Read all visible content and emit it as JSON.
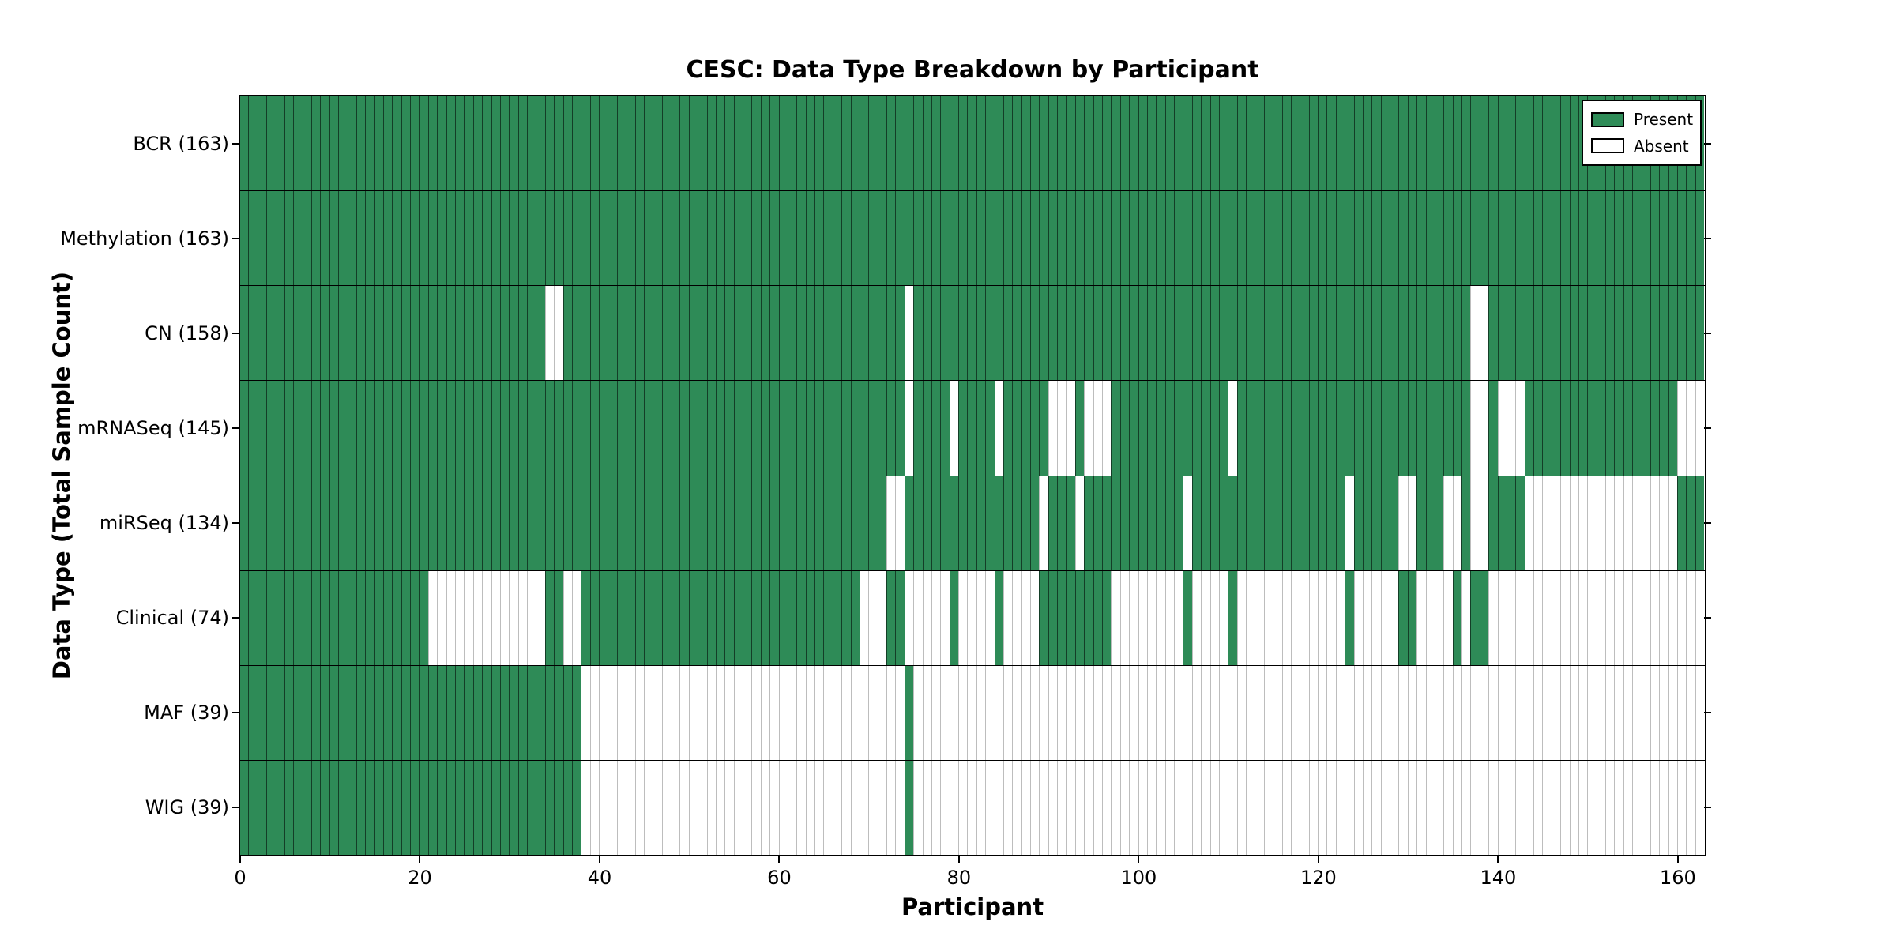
{
  "chart_data": {
    "type": "heatmap",
    "title": "CESC: Data Type Breakdown by Participant",
    "xlabel": "Participant",
    "ylabel": "Data Type (Total Sample Count)",
    "n_participants": 163,
    "xlim": [
      0,
      163
    ],
    "x_ticks": [
      0,
      20,
      40,
      60,
      80,
      100,
      120,
      140,
      160
    ],
    "grid": "per-participant cell edges; black horizontal separators between rows",
    "legend": {
      "position": "upper right",
      "entries": [
        {
          "label": "Present",
          "color": "#2e8b57"
        },
        {
          "label": "Absent",
          "color": "#ffffff"
        }
      ]
    },
    "colors": {
      "present": "#2e8b57",
      "absent": "#ffffff",
      "cell_edge": "#000000",
      "row_separator": "#000000"
    },
    "rows": [
      {
        "label": "BCR (163)",
        "name": "BCR",
        "total_samples": 163,
        "absent_ranges": []
      },
      {
        "label": "Methylation (163)",
        "name": "Methylation",
        "total_samples": 163,
        "absent_ranges": []
      },
      {
        "label": "CN (158)",
        "name": "CN",
        "total_samples": 158,
        "absent_ranges": [
          [
            34,
            35
          ],
          [
            74,
            74
          ],
          [
            137,
            138
          ]
        ]
      },
      {
        "label": "mRNASeq (145)",
        "name": "mRNASeq",
        "total_samples": 145,
        "absent_ranges": [
          [
            74,
            74
          ],
          [
            79,
            79
          ],
          [
            84,
            84
          ],
          [
            90,
            92
          ],
          [
            94,
            96
          ],
          [
            110,
            110
          ],
          [
            137,
            138
          ],
          [
            140,
            142
          ],
          [
            160,
            162
          ]
        ]
      },
      {
        "label": "miRSeq (134)",
        "name": "miRSeq",
        "total_samples": 134,
        "absent_ranges": [
          [
            72,
            73
          ],
          [
            89,
            89
          ],
          [
            93,
            93
          ],
          [
            105,
            105
          ],
          [
            123,
            123
          ],
          [
            129,
            130
          ],
          [
            134,
            135
          ],
          [
            137,
            138
          ],
          [
            143,
            159
          ]
        ]
      },
      {
        "label": "Clinical (74)",
        "name": "Clinical",
        "total_samples": 74,
        "absent_ranges": [
          [
            21,
            33
          ],
          [
            36,
            37
          ],
          [
            69,
            71
          ],
          [
            74,
            78
          ],
          [
            80,
            83
          ],
          [
            85,
            88
          ],
          [
            97,
            104
          ],
          [
            106,
            109
          ],
          [
            111,
            122
          ],
          [
            124,
            128
          ],
          [
            131,
            134
          ],
          [
            136,
            136
          ],
          [
            139,
            162
          ]
        ]
      },
      {
        "label": "MAF (39)",
        "name": "MAF",
        "total_samples": 39,
        "absent_ranges": [
          [
            38,
            73
          ],
          [
            75,
            162
          ]
        ]
      },
      {
        "label": "WIG (39)",
        "name": "WIG",
        "total_samples": 39,
        "absent_ranges": [
          [
            38,
            73
          ],
          [
            75,
            162
          ]
        ]
      }
    ]
  }
}
